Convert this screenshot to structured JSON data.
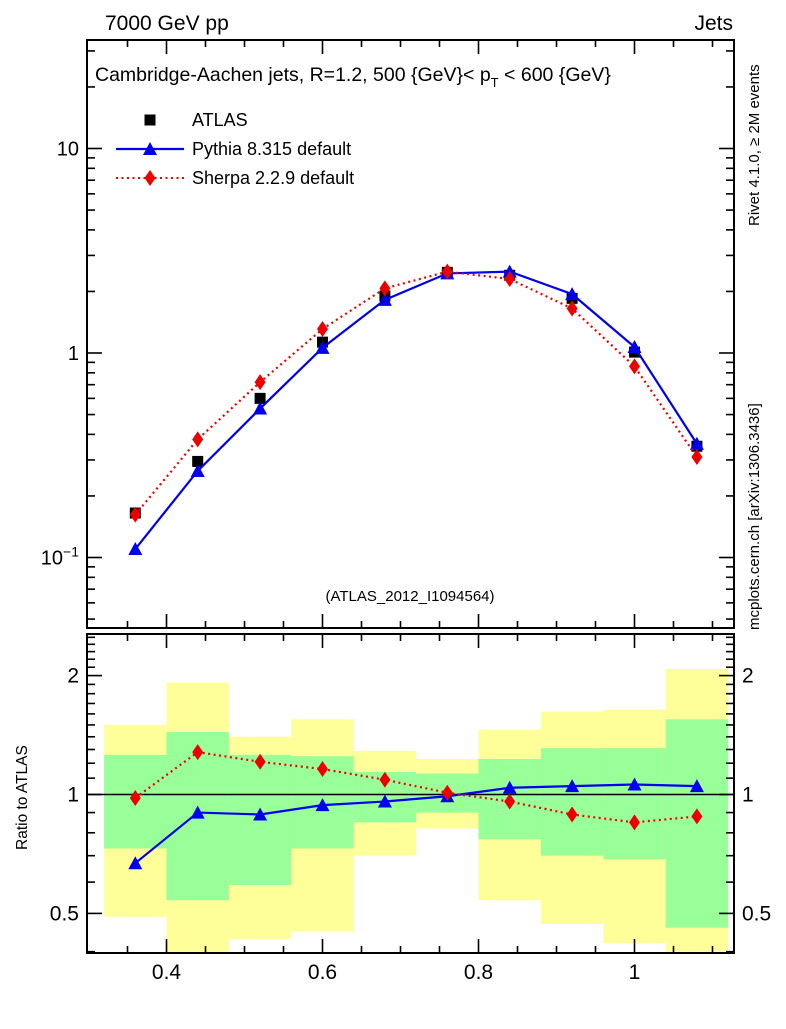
{
  "header": {
    "left": "7000 GeV pp",
    "right": "Jets"
  },
  "plot_title": {
    "pre": "Cambridge-Aachen jets, R=1.2,  500 {GeV}< p",
    "sub": "T",
    "post": " < 600 {GeV}"
  },
  "legend": {
    "items": [
      {
        "label": "ATLAS",
        "color": "#000000",
        "marker": "square",
        "line": "none"
      },
      {
        "label": "Pythia 8.315 default",
        "color": "#0000ee",
        "marker": "triangle",
        "line": "solid"
      },
      {
        "label": "Sherpa 2.2.9 default",
        "color": "#ee0000",
        "marker": "diamond",
        "line": "dotted"
      }
    ]
  },
  "watermark": "(ATLAS_2012_I1094564)",
  "side_labels": {
    "rivet": "Rivet 4.1.0, ≥ 2M events",
    "mcplots": "mcplots.cern.ch [arXiv:1306.3436]"
  },
  "ratio_ylabel": "Ratio to ATLAS",
  "colors": {
    "pythia": "#0000ee",
    "sherpa": "#ee0000",
    "atlas": "#000000",
    "band_yellow": "#ffff99",
    "band_green": "#99ff99",
    "gray_text": "#999999",
    "watermark_gray": "#b5b5b5"
  },
  "chart_data": {
    "type": "line",
    "title": "Cambridge-Aachen jets, R=1.2,  500 {GeV}< p_T < 600 {GeV}",
    "x": [
      0.36,
      0.44,
      0.52,
      0.6,
      0.68,
      0.76,
      0.84,
      0.92,
      1.0,
      1.08
    ],
    "series": [
      {
        "name": "ATLAS",
        "color": "#000000",
        "marker": "square",
        "line": "none",
        "values": [
          0.165,
          0.295,
          0.6,
          1.13,
          1.9,
          2.48,
          2.4,
          1.85,
          1.01,
          0.35
        ]
      },
      {
        "name": "Pythia 8.315 default",
        "color": "#0000ee",
        "marker": "triangle",
        "line": "solid",
        "values": [
          0.11,
          0.265,
          0.535,
          1.06,
          1.82,
          2.45,
          2.5,
          1.94,
          1.07,
          0.36
        ]
      },
      {
        "name": "Sherpa 2.2.9 default",
        "color": "#ee0000",
        "marker": "diamond",
        "line": "dotted",
        "values": [
          0.162,
          0.378,
          0.72,
          1.31,
          2.07,
          2.5,
          2.3,
          1.65,
          0.86,
          0.31
        ]
      }
    ],
    "x_axis": {
      "range": [
        0.301,
        1.128
      ],
      "major_ticks": [
        0.4,
        0.6,
        0.8,
        1.0
      ],
      "labels": [
        "0.4",
        "0.6",
        "0.8",
        "1"
      ],
      "minor_ticks": [
        0.35,
        0.45,
        0.5,
        0.55,
        0.65,
        0.7,
        0.75,
        0.85,
        0.9,
        0.95,
        1.05,
        1.1
      ]
    },
    "main_axis": {
      "scale": "log",
      "range": [
        0.0455,
        34
      ],
      "major_ticks": [
        10,
        1,
        0.1
      ],
      "tick_labels": [
        {
          "t": "10"
        },
        {
          "t": "1"
        },
        {
          "t": "10",
          "sup": "−1"
        }
      ],
      "minor_ticks": [
        0.05,
        0.06,
        0.07,
        0.08,
        0.09,
        0.2,
        0.3,
        0.4,
        0.5,
        0.6,
        0.7,
        0.8,
        0.9,
        2,
        3,
        4,
        5,
        6,
        7,
        8,
        9,
        20,
        30
      ]
    },
    "ratio_axis": {
      "scale": "log",
      "range": [
        0.397,
        2.55
      ],
      "major_ticks": [
        2,
        1,
        0.5
      ],
      "labels": [
        "2",
        "1",
        "0.5"
      ],
      "minor_ticks": [
        0.4,
        0.6,
        0.7,
        0.8,
        0.9,
        1.1,
        1.2,
        1.3,
        1.4,
        1.5,
        1.6,
        1.7,
        1.8,
        1.9,
        2.1,
        2.2,
        2.3,
        2.4,
        2.5
      ]
    },
    "ratio": {
      "reference_line": 1.0,
      "bin_edges": [
        0.32,
        0.4,
        0.48,
        0.56,
        0.64,
        0.72,
        0.8,
        0.88,
        0.96,
        1.04,
        1.12
      ],
      "yellow_lo": [
        0.49,
        0.38,
        0.43,
        0.45,
        0.7,
        0.82,
        0.54,
        0.47,
        0.42,
        0.4
      ],
      "yellow_hi": [
        1.5,
        1.92,
        1.4,
        1.55,
        1.29,
        1.23,
        1.46,
        1.62,
        1.64,
        2.08
      ],
      "green_lo": [
        0.73,
        0.54,
        0.59,
        0.73,
        0.85,
        0.9,
        0.77,
        0.7,
        0.685,
        0.46
      ],
      "green_hi": [
        1.26,
        1.44,
        1.26,
        1.25,
        1.14,
        1.13,
        1.23,
        1.31,
        1.31,
        1.55
      ],
      "pythia_ratio": [
        0.67,
        0.9,
        0.89,
        0.94,
        0.96,
        0.99,
        1.04,
        1.05,
        1.06,
        1.05
      ],
      "sherpa_ratio": [
        0.98,
        1.28,
        1.21,
        1.16,
        1.09,
        1.01,
        0.96,
        0.89,
        0.85,
        0.88
      ]
    }
  }
}
